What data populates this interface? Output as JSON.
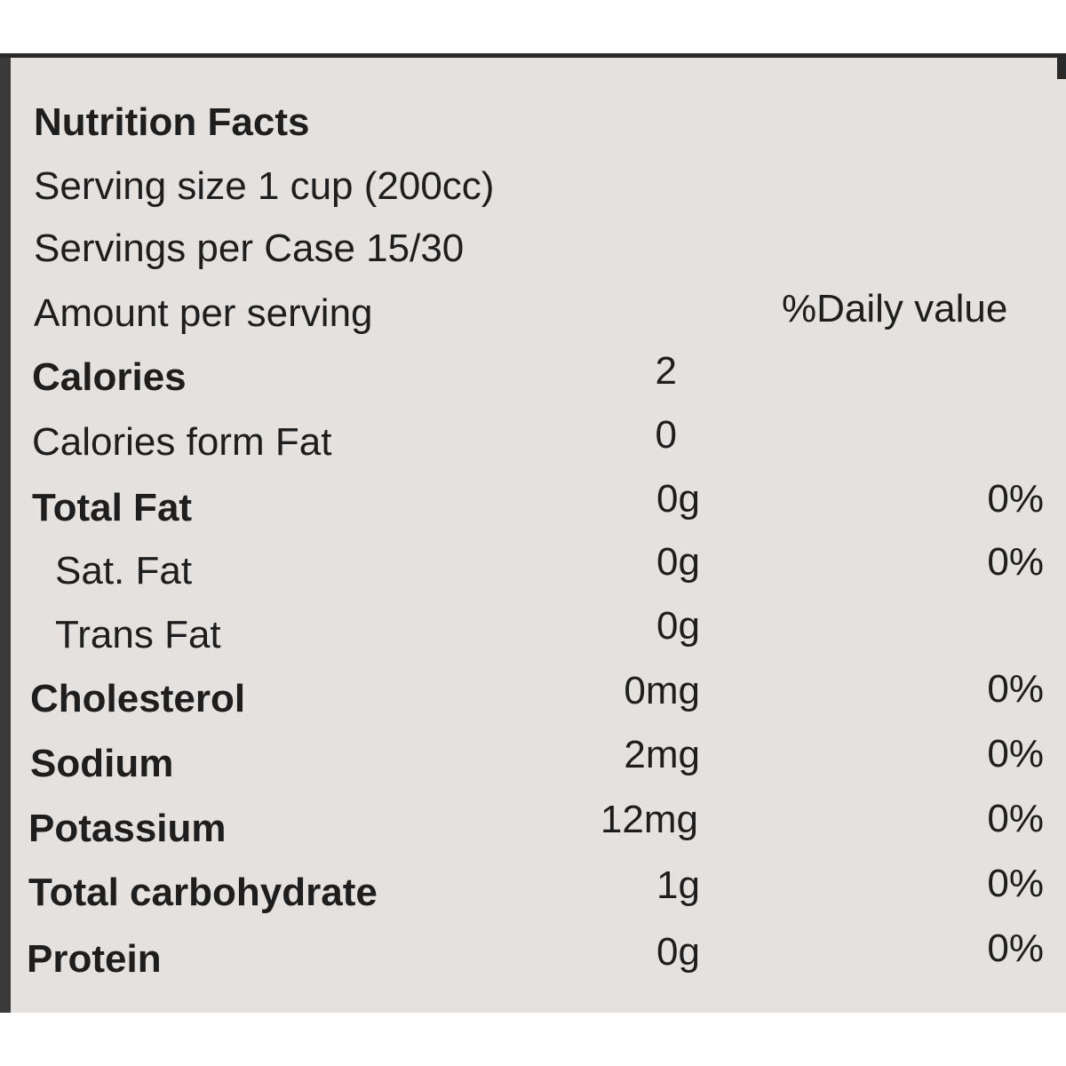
{
  "label": {
    "title": "Nutrition Facts",
    "serving_size": "Serving size 1 cup (200cc)",
    "servings_per": "Servings per Case 15/30",
    "amount_header": "Amount per serving",
    "dv_header": "%Daily value"
  },
  "rows": [
    {
      "name": "Calories",
      "amount": "2",
      "dv": ""
    },
    {
      "name": "Calories form Fat",
      "amount": "0",
      "dv": ""
    },
    {
      "name": "Total Fat",
      "amount": "0g",
      "dv": "0%"
    },
    {
      "name": "Sat. Fat",
      "amount": "0g",
      "dv": "0%"
    },
    {
      "name": "Trans Fat",
      "amount": "0g",
      "dv": ""
    },
    {
      "name": "Cholesterol",
      "amount": "0mg",
      "dv": "0%"
    },
    {
      "name": "Sodium",
      "amount": "2mg",
      "dv": "0%"
    },
    {
      "name": "Potassium",
      "amount": "12mg",
      "dv": "0%"
    },
    {
      "name": "Total carbohydrate",
      "amount": "1g",
      "dv": "0%"
    },
    {
      "name": "Protein",
      "amount": "0g",
      "dv": "0%"
    }
  ]
}
